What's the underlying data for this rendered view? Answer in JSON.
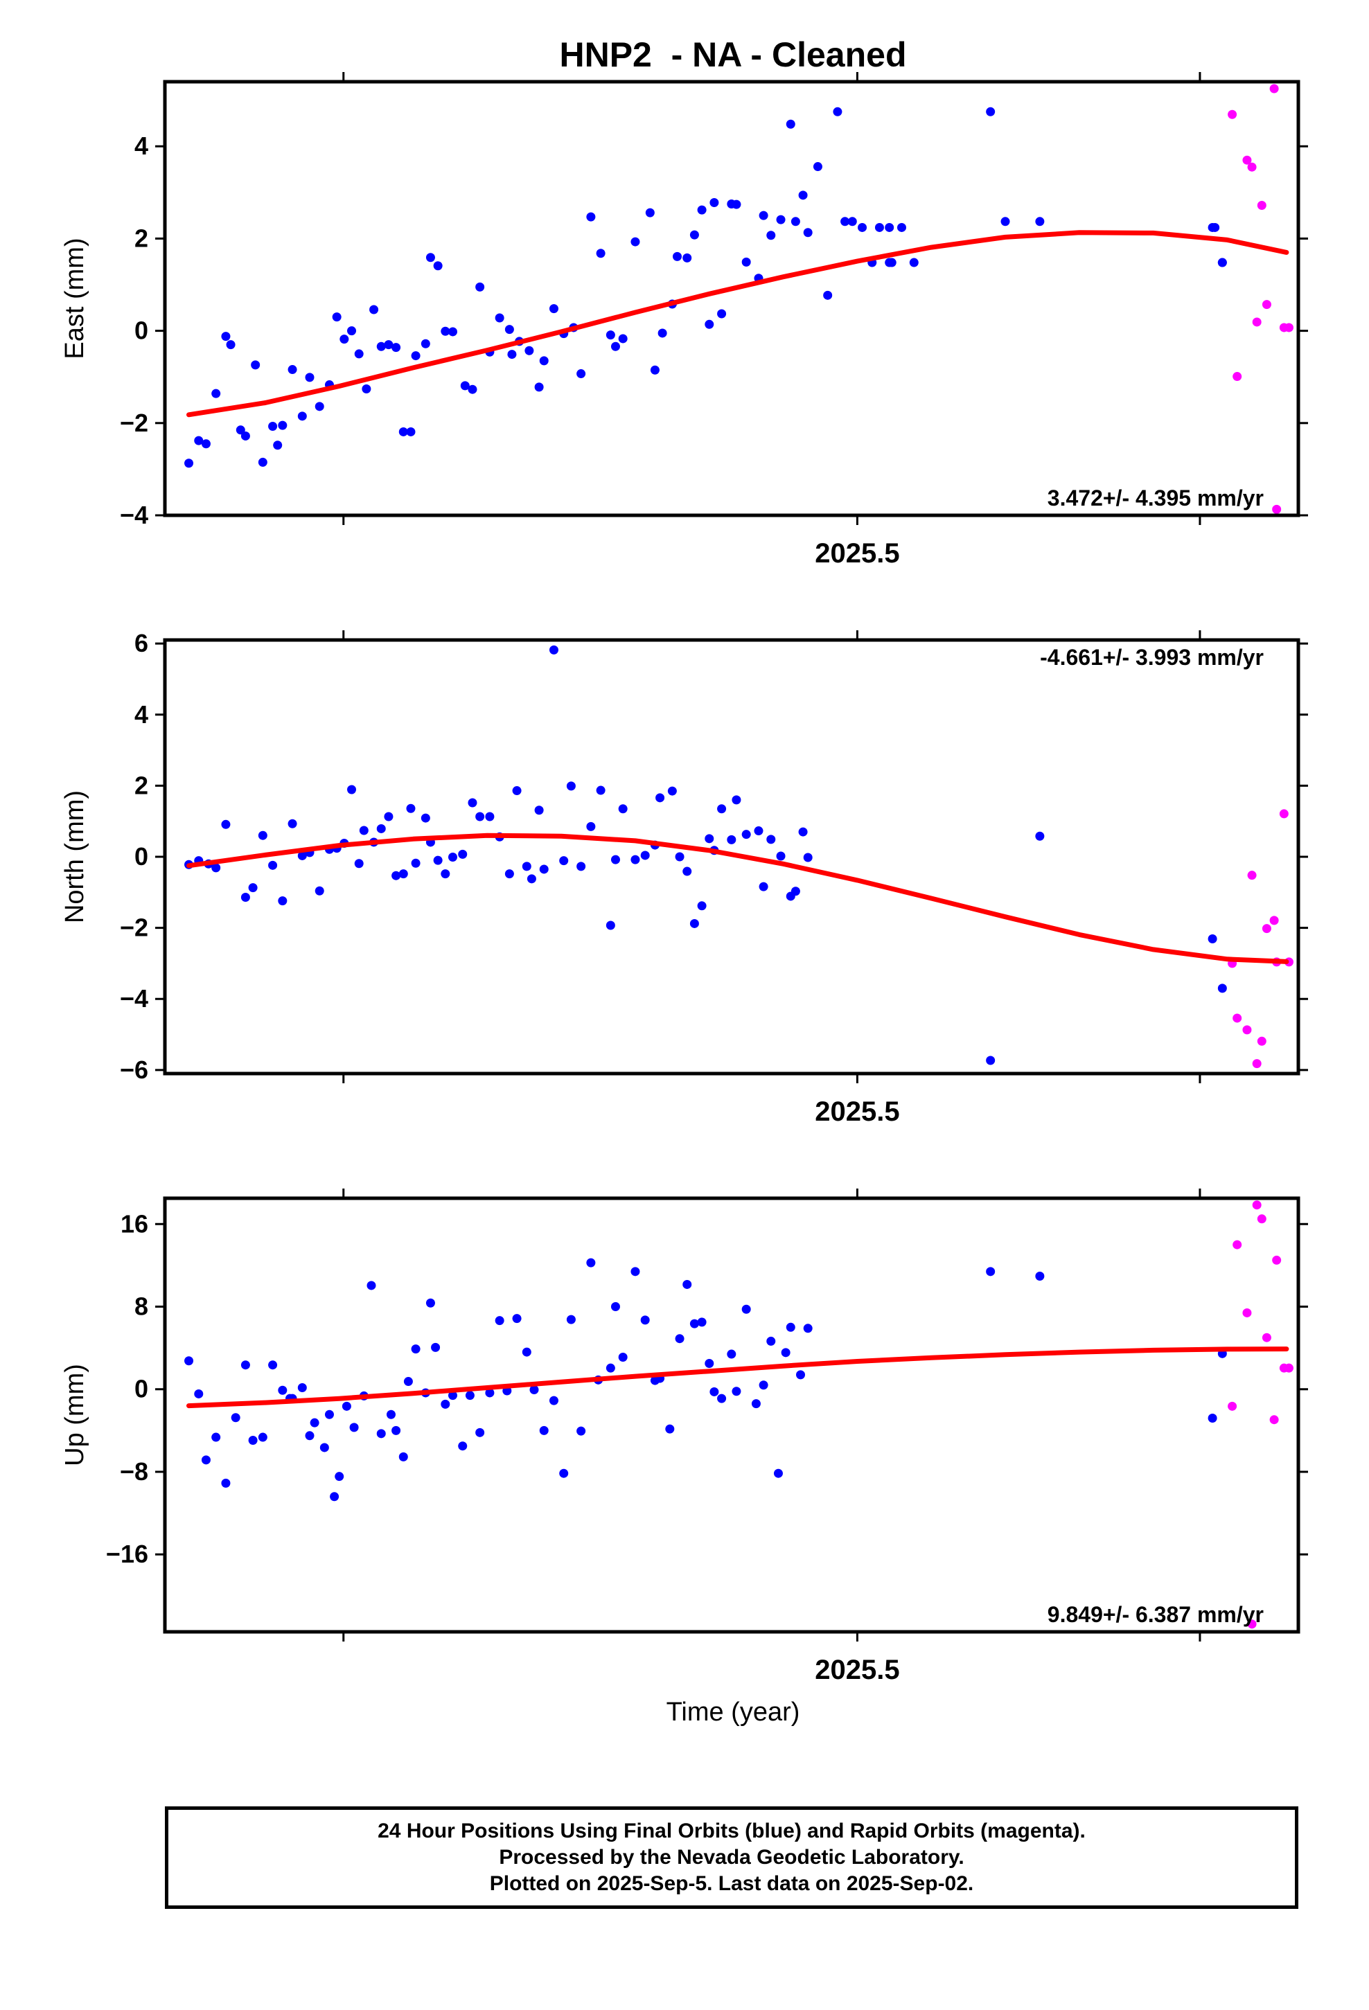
{
  "title": "HNP2  - NA - Cleaned",
  "time_axis_label": "Time (year)",
  "caption": {
    "line1": "24 Hour Positions Using Final Orbits (blue) and Rapid Orbits (magenta).",
    "line2": "Processed by the Nevada Geodetic Laboratory.",
    "line3": "Plotted on 2025-Sep-5. Last data on 2025-Sep-02."
  },
  "colors": {
    "final": "#0000ff",
    "rapid": "#ff00ff",
    "fit": "#ff0000",
    "frame": "#000000"
  },
  "chart_data": [
    {
      "type": "scatter",
      "panel": "east",
      "ylabel": "East (mm)",
      "ylim": [
        -4,
        5.4
      ],
      "xlim": [
        2025.2193,
        2025.6788
      ],
      "yticks": [
        -4,
        -2,
        0,
        2,
        4
      ],
      "xtick_labels": [
        {
          "value": 2025.5,
          "label": "2025.5"
        }
      ],
      "xticks_minor": [
        2025.2917,
        2025.5,
        2025.6389
      ],
      "rate_label": "3.472+/- 4.395 mm/yr",
      "rate_label_position": "bottom-right",
      "fit": {
        "name": "fit",
        "x": [
          2025.229,
          2025.26,
          2025.29,
          2025.32,
          2025.35,
          2025.38,
          2025.41,
          2025.44,
          2025.47,
          2025.5,
          2025.53,
          2025.56,
          2025.59,
          2025.62,
          2025.65,
          2025.674
        ],
        "y": [
          -1.82,
          -1.56,
          -1.2,
          -0.8,
          -0.42,
          -0.02,
          0.4,
          0.8,
          1.17,
          1.51,
          1.81,
          2.03,
          2.13,
          2.12,
          1.97,
          1.7
        ]
      },
      "final": {
        "x": [
          2025.229,
          2025.233,
          2025.236,
          2025.24,
          2025.244,
          2025.246,
          2025.25,
          2025.252,
          2025.256,
          2025.259,
          2025.263,
          2025.265,
          2025.267,
          2025.271,
          2025.275,
          2025.278,
          2025.282,
          2025.286,
          2025.289,
          2025.292,
          2025.295,
          2025.298,
          2025.301,
          2025.304,
          2025.307,
          2025.31,
          2025.313,
          2025.316,
          2025.319,
          2025.321,
          2025.325,
          2025.327,
          2025.33,
          2025.333,
          2025.336,
          2025.341,
          2025.344,
          2025.347,
          2025.351,
          2025.355,
          2025.359,
          2025.36,
          2025.363,
          2025.367,
          2025.371,
          2025.373,
          2025.377,
          2025.381,
          2025.385,
          2025.388,
          2025.392,
          2025.396,
          2025.4,
          2025.402,
          2025.405,
          2025.41,
          2025.416,
          2025.418,
          2025.421,
          2025.425,
          2025.427,
          2025.431,
          2025.434,
          2025.437,
          2025.44,
          2025.442,
          2025.445,
          2025.449,
          2025.451,
          2025.455,
          2025.46,
          2025.462,
          2025.465,
          2025.469,
          2025.473,
          2025.475,
          2025.478,
          2025.48,
          2025.484,
          2025.488,
          2025.492,
          2025.495,
          2025.498,
          2025.502,
          2025.506,
          2025.509,
          2025.513,
          2025.513,
          2025.514,
          2025.518,
          2025.523,
          2025.56,
          2025.645,
          2025.648
        ],
        "y": [
          -2.87,
          -2.38,
          -2.45,
          -1.36,
          -0.12,
          -0.3,
          -2.15,
          -2.28,
          -0.74,
          -2.85,
          -2.07,
          -2.48,
          -2.05,
          -0.84,
          -1.85,
          -1.01,
          -1.64,
          -1.17,
          0.3,
          -0.18,
          0.0,
          -0.5,
          -1.26,
          0.46,
          -0.34,
          -0.3,
          -0.36,
          -2.19,
          -2.19,
          -0.54,
          -0.28,
          1.59,
          1.41,
          -0.01,
          -0.02,
          -1.19,
          -1.27,
          0.95,
          -0.46,
          0.28,
          0.03,
          -0.51,
          -0.23,
          -0.43,
          -1.22,
          -0.65,
          0.48,
          -0.06,
          0.07,
          -0.93,
          2.47,
          1.68,
          -0.09,
          -0.34,
          -0.17,
          1.93,
          2.56,
          -0.85,
          -0.05,
          0.58,
          1.61,
          1.58,
          2.08,
          2.62,
          0.14,
          2.78,
          0.37,
          2.75,
          2.74,
          1.49,
          1.14,
          2.5,
          2.07,
          2.41,
          4.48,
          2.37,
          2.94,
          2.13,
          3.56,
          0.77,
          4.75,
          2.37,
          2.37,
          2.24,
          1.48,
          2.24,
          1.48,
          2.24,
          1.48,
          2.24,
          1.48,
          2.37,
          2.24,
          1.48
        ],
        "note_fix": [
          {
            "x": 2025.554,
            "y": 4.75
          },
          {
            "x": 2025.574,
            "y": 2.37
          },
          {
            "x": 2025.644,
            "y": 2.24
          },
          {
            "x": 2025.648,
            "y": 1.48
          }
        ]
      },
      "rapid": {
        "x": [
          2025.652,
          2025.654,
          2025.658,
          2025.66,
          2025.662,
          2025.664,
          2025.666,
          2025.669,
          2025.67,
          2025.673,
          2025.675
        ],
        "y": [
          4.69,
          -0.99,
          3.7,
          3.55,
          0.19,
          2.72,
          0.57,
          5.25,
          -3.87,
          0.07,
          0.07
        ]
      }
    },
    {
      "type": "scatter",
      "panel": "north",
      "ylabel": "North (mm)",
      "ylim": [
        -6.1,
        6.1
      ],
      "xlim": [
        2025.2193,
        2025.6788
      ],
      "yticks": [
        -6,
        -4,
        -2,
        0,
        2,
        4,
        6
      ],
      "xtick_labels": [
        {
          "value": 2025.5,
          "label": "2025.5"
        }
      ],
      "xticks_minor": [
        2025.2917,
        2025.5,
        2025.6389
      ],
      "rate_label": "-4.661+/- 3.993 mm/yr",
      "rate_label_position": "top-right",
      "fit": {
        "name": "fit",
        "x": [
          2025.229,
          2025.26,
          2025.29,
          2025.32,
          2025.35,
          2025.38,
          2025.41,
          2025.44,
          2025.47,
          2025.5,
          2025.53,
          2025.56,
          2025.59,
          2025.62,
          2025.65,
          2025.674
        ],
        "y": [
          -0.25,
          0.05,
          0.32,
          0.5,
          0.6,
          0.58,
          0.45,
          0.18,
          -0.2,
          -0.66,
          -1.17,
          -1.69,
          -2.19,
          -2.61,
          -2.88,
          -2.95
        ]
      },
      "final": {
        "x": [
          2025.229,
          2025.233,
          2025.237,
          2025.24,
          2025.244,
          2025.252,
          2025.255,
          2025.259,
          2025.263,
          2025.267,
          2025.271,
          2025.275,
          2025.278,
          2025.282,
          2025.286,
          2025.289,
          2025.292,
          2025.295,
          2025.298,
          2025.3,
          2025.304,
          2025.307,
          2025.31,
          2025.313,
          2025.316,
          2025.319,
          2025.321,
          2025.325,
          2025.327,
          2025.33,
          2025.333,
          2025.336,
          2025.34,
          2025.344,
          2025.347,
          2025.351,
          2025.355,
          2025.359,
          2025.362,
          2025.366,
          2025.368,
          2025.371,
          2025.373,
          2025.377,
          2025.381,
          2025.384,
          2025.388,
          2025.392,
          2025.396,
          2025.4,
          2025.402,
          2025.405,
          2025.41,
          2025.414,
          2025.418,
          2025.42,
          2025.425,
          2025.428,
          2025.431,
          2025.434,
          2025.437,
          2025.44,
          2025.442,
          2025.445,
          2025.449,
          2025.451,
          2025.455,
          2025.46,
          2025.462,
          2025.465,
          2025.469,
          2025.473,
          2025.475,
          2025.478,
          2025.48,
          2025.554,
          2025.574,
          2025.644,
          2025.648
        ],
        "y": [
          -0.22,
          -0.11,
          -0.2,
          -0.31,
          0.91,
          -1.14,
          -0.87,
          0.6,
          -0.24,
          -1.24,
          0.93,
          0.03,
          0.12,
          -0.96,
          0.21,
          0.24,
          0.38,
          1.89,
          -0.19,
          0.74,
          0.41,
          0.79,
          1.13,
          -0.53,
          -0.48,
          1.36,
          -0.18,
          1.09,
          0.41,
          -0.1,
          -0.48,
          -0.01,
          0.07,
          1.52,
          1.13,
          1.13,
          0.56,
          -0.48,
          1.86,
          -0.27,
          -0.62,
          1.31,
          -0.35,
          5.82,
          -0.11,
          1.99,
          -0.27,
          0.85,
          1.87,
          -1.93,
          -0.08,
          1.35,
          -0.08,
          0.04,
          0.33,
          1.66,
          1.85,
          0.0,
          -0.41,
          -1.88,
          -1.38,
          0.51,
          0.18,
          1.35,
          0.48,
          1.6,
          0.63,
          0.73,
          -0.84,
          0.49,
          0.02,
          -1.11,
          -0.97,
          0.7,
          -0.02,
          -5.73,
          0.58,
          -2.31,
          -3.7
        ],
        "note": "points read approximately from plotted markers"
      },
      "rapid": {
        "x": [
          2025.652,
          2025.654,
          2025.658,
          2025.66,
          2025.662,
          2025.664,
          2025.666,
          2025.669,
          2025.67,
          2025.673,
          2025.675
        ],
        "y": [
          -3.0,
          -4.54,
          -4.87,
          -0.52,
          -5.82,
          -5.19,
          -2.02,
          -1.79,
          -2.96,
          1.21,
          -2.96
        ]
      }
    },
    {
      "type": "scatter",
      "panel": "up",
      "ylabel": "Up (mm)",
      "ylim": [
        -23.5,
        18.5
      ],
      "xlim": [
        2025.2193,
        2025.6788
      ],
      "yticks": [
        -16,
        -8,
        0,
        8,
        16
      ],
      "xtick_labels": [
        {
          "value": 2025.5,
          "label": "2025.5"
        }
      ],
      "xticks_minor": [
        2025.2917,
        2025.5,
        2025.6389
      ],
      "rate_label": "9.849+/- 6.387 mm/yr",
      "rate_label_position": "bottom-right",
      "fit": {
        "name": "fit",
        "x": [
          2025.229,
          2025.26,
          2025.29,
          2025.32,
          2025.35,
          2025.38,
          2025.41,
          2025.44,
          2025.47,
          2025.5,
          2025.53,
          2025.56,
          2025.59,
          2025.62,
          2025.65,
          2025.674
        ],
        "y": [
          -1.6,
          -1.3,
          -0.9,
          -0.4,
          0.15,
          0.7,
          1.25,
          1.75,
          2.25,
          2.7,
          3.05,
          3.35,
          3.6,
          3.78,
          3.88,
          3.9
        ]
      },
      "final": {
        "x": [
          2025.229,
          2025.233,
          2025.236,
          2025.24,
          2025.244,
          2025.248,
          2025.252,
          2025.255,
          2025.259,
          2025.263,
          2025.267,
          2025.27,
          2025.271,
          2025.275,
          2025.278,
          2025.28,
          2025.284,
          2025.286,
          2025.288,
          2025.29,
          2025.293,
          2025.296,
          2025.3,
          2025.303,
          2025.307,
          2025.311,
          2025.313,
          2025.316,
          2025.318,
          2025.321,
          2025.325,
          2025.327,
          2025.329,
          2025.333,
          2025.336,
          2025.34,
          2025.343,
          2025.347,
          2025.351,
          2025.355,
          2025.358,
          2025.362,
          2025.366,
          2025.369,
          2025.373,
          2025.377,
          2025.381,
          2025.384,
          2025.388,
          2025.392,
          2025.395,
          2025.4,
          2025.402,
          2025.405,
          2025.41,
          2025.414,
          2025.418,
          2025.42,
          2025.424,
          2025.428,
          2025.431,
          2025.434,
          2025.437,
          2025.44,
          2025.442,
          2025.445,
          2025.449,
          2025.451,
          2025.455,
          2025.459,
          2025.462,
          2025.465,
          2025.468,
          2025.471,
          2025.473,
          2025.477,
          2025.48,
          2025.554,
          2025.574,
          2025.644,
          2025.648
        ],
        "y": [
          2.75,
          -0.45,
          -6.85,
          -4.65,
          -9.1,
          -2.75,
          2.35,
          -4.95,
          -4.65,
          2.35,
          -0.1,
          -0.9,
          -0.9,
          0.15,
          -4.5,
          -3.25,
          -5.65,
          -2.45,
          -10.4,
          -8.45,
          -1.65,
          -3.7,
          -0.65,
          10.05,
          -4.3,
          -2.45,
          -4.0,
          -6.55,
          0.75,
          3.9,
          -0.35,
          8.35,
          4.05,
          -1.45,
          -0.6,
          -5.5,
          -0.6,
          -4.2,
          -0.35,
          6.65,
          -0.15,
          6.85,
          3.6,
          -0.05,
          -4.0,
          -1.1,
          -8.15,
          6.75,
          -4.05,
          12.25,
          0.9,
          2.05,
          8.0,
          3.1,
          11.4,
          6.7,
          0.85,
          1.05,
          -3.85,
          4.9,
          10.15,
          6.35,
          6.5,
          2.5,
          -0.25,
          -0.9,
          3.4,
          -0.2,
          7.75,
          -1.4,
          0.4,
          4.65,
          -8.15,
          3.55,
          6.0,
          1.4,
          5.9,
          11.4,
          10.95,
          -2.8,
          3.45
        ],
        "note": "points read approximately from plotted markers"
      },
      "rapid": {
        "x": [
          2025.652,
          2025.654,
          2025.658,
          2025.66,
          2025.662,
          2025.664,
          2025.666,
          2025.669,
          2025.67,
          2025.673,
          2025.675
        ],
        "y": [
          -1.65,
          14.0,
          7.4,
          -22.75,
          17.85,
          16.5,
          5.0,
          -2.95,
          12.5,
          2.05,
          2.05
        ]
      }
    }
  ]
}
